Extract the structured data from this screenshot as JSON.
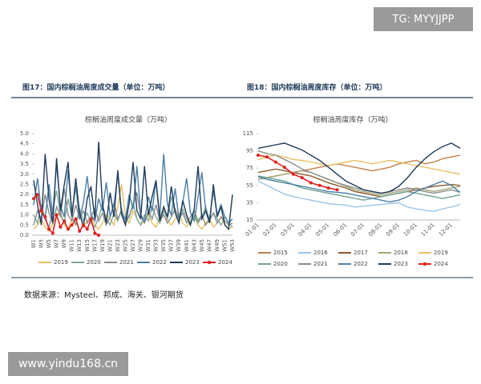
{
  "watermark_top": "TG: MYYJJPP",
  "watermark_bottom": "www.yindu168.cn",
  "captions": [
    "图17：国内棕榈油周度成交量（单位：万吨）",
    "图18：国内棕榈油周度库存（单位：万吨）"
  ],
  "source": "数据来源：Mysteel、邦成、海关、银河期货",
  "chart_data": [
    {
      "type": "line",
      "title": "棕榈油周度成交量（万吨）",
      "categories": [
        "W1",
        null,
        "W3",
        null,
        "W5",
        null,
        "W7",
        null,
        "W9",
        null,
        "W11",
        null,
        "W13",
        null,
        "W15",
        null,
        "W17",
        null,
        "W19",
        null,
        "W21",
        null,
        "W23",
        null,
        "W25",
        null,
        "W27",
        null,
        "W29",
        null,
        "W31",
        null,
        "W33",
        null,
        "W35",
        null,
        "W37",
        null,
        "W39",
        null,
        "W41",
        null,
        "W43",
        null,
        "W45",
        null,
        "W47",
        null,
        "W49",
        null,
        "W51",
        null,
        "W53"
      ],
      "ylim": [
        0,
        5
      ],
      "yticks": [
        {
          "value": 0,
          "label": "0.0"
        },
        0.5,
        {
          "value": 1,
          "label": "1.0"
        },
        1.5,
        {
          "value": 2,
          "label": "2.0"
        },
        2.5,
        {
          "value": 3,
          "label": "3.0"
        },
        3.5,
        {
          "value": 4,
          "label": "4.0"
        },
        4.5,
        {
          "value": 5,
          "label": "5.0"
        }
      ],
      "series": [
        {
          "name": "2019",
          "color": "#e8c062",
          "values": [
            0.3,
            0.5,
            0.8,
            0.4,
            0.2,
            0.6,
            0.9,
            1.2,
            0.5,
            0.3,
            0.8,
            0.6,
            1.1,
            0.4,
            0.7,
            0.9,
            0.5,
            0.3,
            0.6,
            1.0,
            0.8,
            0.5,
            1.4,
            2.5,
            0.9,
            0.6,
            1.2,
            0.8,
            0.5,
            0.7,
            1.0,
            0.6,
            0.4,
            0.9,
            1.3,
            0.7,
            0.5,
            0.8,
            1.1,
            0.6,
            0.4,
            0.7,
            0.9,
            0.5,
            0.3,
            0.6,
            0.8,
            0.4,
            0.6,
            0.9,
            0.5,
            0.3,
            0.4
          ]
        },
        {
          "name": "2020",
          "color": "#7fa89a",
          "values": [
            1.0,
            0.6,
            1.5,
            0.8,
            0.4,
            1.2,
            2.2,
            1.0,
            0.6,
            1.8,
            0.9,
            0.5,
            1.3,
            0.7,
            1.1,
            0.6,
            0.4,
            0.9,
            1.5,
            0.8,
            0.5,
            1.1,
            0.7,
            1.3,
            0.6,
            0.9,
            1.6,
            0.8,
            0.5,
            1.0,
            0.7,
            1.4,
            0.9,
            0.6,
            1.2,
            0.8,
            1.9,
            1.1,
            0.7,
            1.3,
            0.8,
            0.5,
            1.0,
            0.6,
            0.9,
            1.4,
            0.7,
            1.1,
            0.8,
            0.5,
            0.9,
            0.6,
            0.4
          ]
        },
        {
          "name": "2021",
          "color": "#8c8c8c",
          "values": [
            0.5,
            1.2,
            0.8,
            2.0,
            1.1,
            0.6,
            1.4,
            0.9,
            2.3,
            1.0,
            0.7,
            1.5,
            0.8,
            1.2,
            0.6,
            0.9,
            1.3,
            0.7,
            1.1,
            0.5,
            0.9,
            1.6,
            0.8,
            1.2,
            0.6,
            1.0,
            1.4,
            2.1,
            0.9,
            0.6,
            1.2,
            0.8,
            1.5,
            0.7,
            1.0,
            0.6,
            0.9,
            1.3,
            0.8,
            1.1,
            0.6,
            0.9,
            1.2,
            0.7,
            1.0,
            0.5,
            0.8,
            1.1,
            0.6,
            0.9,
            0.7,
            0.5,
            0.6
          ]
        },
        {
          "name": "2022",
          "color": "#4a7fa8",
          "values": [
            1.5,
            2.8,
            1.2,
            0.8,
            2.5,
            1.0,
            3.5,
            1.4,
            0.9,
            3.2,
            1.1,
            2.4,
            0.8,
            1.6,
            2.9,
            1.0,
            0.7,
            1.8,
            1.2,
            2.6,
            0.9,
            1.5,
            3.0,
            1.1,
            0.8,
            2.0,
            1.3,
            3.4,
            1.0,
            0.7,
            1.9,
            1.2,
            2.7,
            0.9,
            4.0,
            1.5,
            1.0,
            2.3,
            0.8,
            1.6,
            2.8,
            1.1,
            0.7,
            1.9,
            3.1,
            1.2,
            0.8,
            2.2,
            1.0,
            1.5,
            0.9,
            0.6,
            0.8
          ]
        },
        {
          "name": "2023",
          "color": "#1f3b5a",
          "values": [
            2.7,
            1.5,
            0.5,
            4.0,
            1.8,
            0.6,
            3.8,
            1.2,
            2.5,
            3.6,
            0.9,
            2.8,
            1.1,
            0.4,
            1.8,
            2.4,
            0.8,
            4.6,
            1.5,
            0.6,
            2.1,
            0.9,
            3.2,
            1.0,
            0.5,
            1.6,
            3.6,
            1.2,
            0.8,
            3.4,
            1.0,
            1.9,
            2.7,
            0.7,
            1.4,
            0.9,
            2.4,
            1.1,
            0.6,
            1.7,
            1.0,
            0.5,
            1.3,
            3.4,
            0.8,
            1.2,
            0.6,
            2.5,
            0.9,
            1.4,
            0.5,
            0.3,
            2.0
          ]
        },
        {
          "name": "2024",
          "color": "#e02020",
          "marker": "circle",
          "values": [
            1.8,
            2.0,
            1.2,
            0.9,
            0.3,
            0.1,
            1.0,
            0.4,
            0.7,
            0.3,
            0.5,
            0.8,
            0.2,
            0.5,
            0.3,
            0.8,
            0.1,
            0.0,
            null,
            null,
            null,
            null,
            null,
            null,
            null,
            null,
            null,
            null,
            null,
            null,
            null,
            null,
            null,
            null,
            null,
            null,
            null,
            null,
            null,
            null,
            null,
            null,
            null,
            null,
            null,
            null,
            null,
            null,
            null,
            null,
            null,
            null,
            null
          ]
        }
      ]
    },
    {
      "type": "line",
      "title": "棕榈油周度库存（万吨）",
      "categories": [
        "01-01",
        null,
        "02-01",
        null,
        "03-01",
        null,
        "04-01",
        null,
        "05-01",
        null,
        "06-01",
        null,
        "07-01",
        null,
        "08-01",
        null,
        "09-01",
        null,
        "10-01",
        null,
        "11-01",
        null,
        "12-01",
        null
      ],
      "ylim": [
        15,
        115
      ],
      "yticks": [
        15,
        35,
        55,
        75,
        95,
        115
      ],
      "series": [
        {
          "name": "2015",
          "color": "#c0804a",
          "values": [
            62,
            64,
            66,
            68,
            70,
            72,
            74,
            76,
            78,
            80,
            78,
            76,
            74,
            72,
            74,
            76,
            80,
            82,
            84,
            80,
            82,
            86,
            88,
            90
          ]
        },
        {
          "name": "2016",
          "color": "#9dc3e6",
          "values": [
            60,
            55,
            50,
            45,
            42,
            40,
            38,
            36,
            34,
            33,
            32,
            30,
            31,
            32,
            33,
            34,
            35,
            30,
            28,
            26,
            25,
            28,
            30,
            33
          ]
        },
        {
          "name": "2017",
          "color": "#8b5a2b",
          "values": [
            70,
            72,
            74,
            72,
            70,
            68,
            66,
            62,
            58,
            55,
            52,
            48,
            46,
            44,
            42,
            44,
            46,
            48,
            50,
            52,
            54,
            55,
            56,
            55
          ]
        },
        {
          "name": "2018",
          "color": "#a5a57a",
          "values": [
            62,
            64,
            66,
            68,
            70,
            72,
            70,
            66,
            62,
            58,
            54,
            50,
            48,
            46,
            44,
            46,
            48,
            50,
            52,
            50,
            48,
            50,
            52,
            54
          ]
        },
        {
          "name": "2019",
          "color": "#e8c062",
          "values": [
            85,
            88,
            90,
            88,
            85,
            84,
            82,
            80,
            78,
            80,
            82,
            84,
            82,
            80,
            82,
            84,
            82,
            80,
            78,
            76,
            74,
            72,
            70,
            68
          ]
        },
        {
          "name": "2020",
          "color": "#6fa08f",
          "values": [
            66,
            64,
            62,
            60,
            56,
            52,
            50,
            48,
            46,
            44,
            42,
            40,
            38,
            40,
            42,
            44,
            46,
            48,
            46,
            44,
            42,
            40,
            42,
            44
          ]
        },
        {
          "name": "2021",
          "color": "#8c8c8c",
          "values": [
            95,
            92,
            90,
            85,
            80,
            74,
            70,
            66,
            62,
            58,
            55,
            52,
            50,
            48,
            46,
            48,
            50,
            52,
            50,
            48,
            46,
            48,
            50,
            47
          ]
        },
        {
          "name": "2022",
          "color": "#4a7fa8",
          "values": [
            65,
            62,
            60,
            58,
            56,
            54,
            52,
            50,
            48,
            47,
            46,
            44,
            42,
            40,
            38,
            36,
            38,
            42,
            48,
            52,
            56,
            60,
            55,
            47
          ]
        },
        {
          "name": "2023",
          "color": "#1f3b5a",
          "values": [
            98,
            100,
            102,
            104,
            100,
            96,
            90,
            84,
            76,
            68,
            60,
            55,
            50,
            48,
            46,
            48,
            54,
            64,
            76,
            86,
            94,
            100,
            104,
            98
          ]
        },
        {
          "name": "2024",
          "color": "#e02020",
          "marker": "circle",
          "values": [
            90,
            88,
            82,
            76,
            68,
            64,
            58,
            55,
            52,
            50,
            null,
            null,
            null,
            null,
            null,
            null,
            null,
            null,
            null,
            null,
            null,
            null,
            null,
            null
          ]
        }
      ]
    }
  ]
}
